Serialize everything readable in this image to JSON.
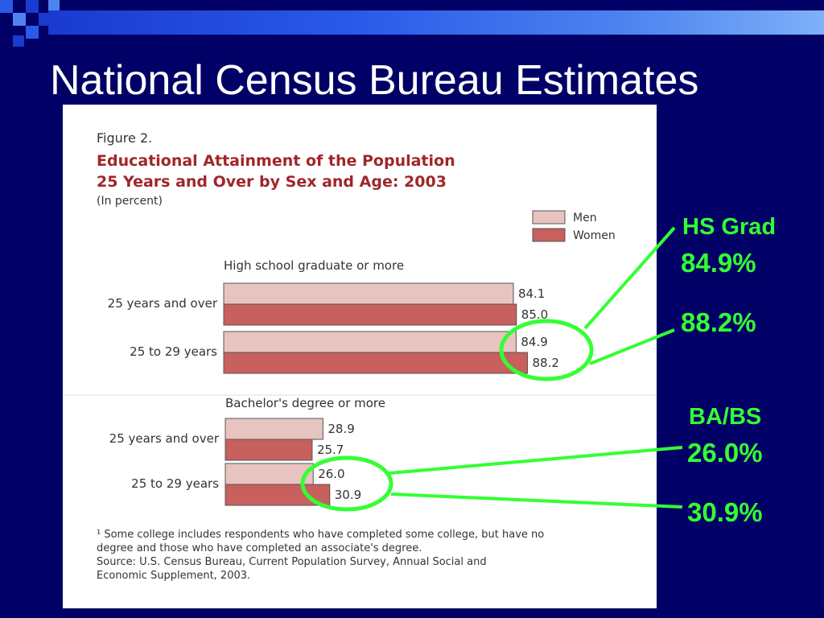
{
  "slide": {
    "title": "National Census Bureau Estimates",
    "colors": {
      "background": "#000066",
      "accent_bar": "#2a5ae8",
      "callout": "#33ff33"
    }
  },
  "figure": {
    "number_label": "Figure 2.",
    "title_line1": "Educational Attainment of the Population",
    "title_line2": "25 Years and Over by Sex and Age:  2003",
    "subtitle": "(In percent)",
    "footnote_lines": [
      "¹ Some college includes respondents who have completed some college, but have no",
      "degree and those who have completed an associate's degree.",
      "Source:  U.S. Census Bureau, Current Population Survey, Annual Social and",
      "Economic Supplement, 2003."
    ]
  },
  "chart_data": {
    "type": "bar",
    "orientation": "horizontal",
    "legend": [
      {
        "name": "Men",
        "color": "#e8c4c0"
      },
      {
        "name": "Women",
        "color": "#c8605e"
      }
    ],
    "legend_position": "top-right",
    "xlim": [
      0,
      100
    ],
    "groups": [
      {
        "heading": "High school graduate or more",
        "categories": [
          "25 years and over",
          "25 to 29 years"
        ],
        "series": [
          {
            "name": "Men",
            "values": [
              84.1,
              84.9
            ],
            "labels": [
              "84.1",
              "84.9"
            ]
          },
          {
            "name": "Women",
            "values": [
              85.0,
              88.2
            ],
            "labels": [
              "85.0",
              "88.2"
            ]
          }
        ]
      },
      {
        "heading": "Bachelor's degree or more",
        "categories": [
          "25 years and over",
          "25 to 29 years"
        ],
        "series": [
          {
            "name": "Men",
            "values": [
              28.9,
              26.0
            ],
            "labels": [
              "28.9",
              "26.0"
            ]
          },
          {
            "name": "Women",
            "values": [
              25.7,
              30.9
            ],
            "labels": [
              "25.7",
              "30.9"
            ]
          }
        ]
      }
    ]
  },
  "callouts": {
    "hs": {
      "label": "HS Grad",
      "men_value": "84.9%",
      "women_value": "88.2%"
    },
    "ba": {
      "label": "BA/BS",
      "men_value": "26.0%",
      "women_value": "30.9%"
    }
  }
}
